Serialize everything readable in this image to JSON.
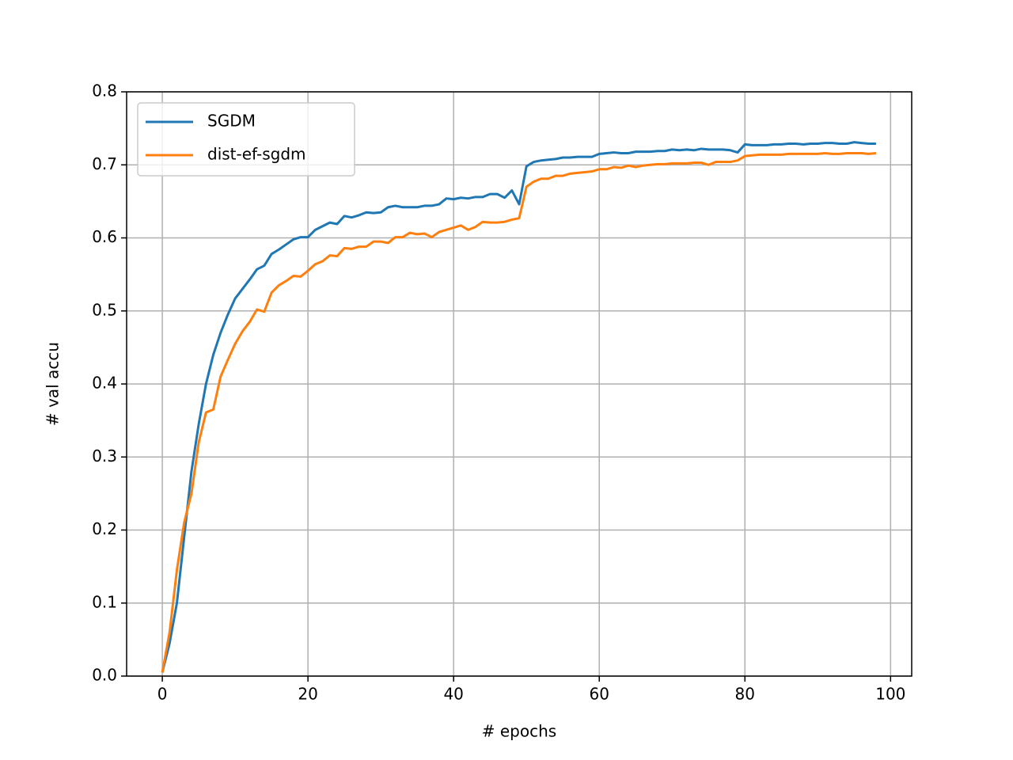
{
  "chart_data": {
    "type": "line",
    "xlabel": "# epochs",
    "ylabel": "# val accu",
    "x": [
      0,
      1,
      2,
      3,
      4,
      5,
      6,
      7,
      8,
      9,
      10,
      11,
      12,
      13,
      14,
      15,
      16,
      17,
      18,
      19,
      20,
      21,
      22,
      23,
      24,
      25,
      26,
      27,
      28,
      29,
      30,
      31,
      32,
      33,
      34,
      35,
      36,
      37,
      38,
      39,
      40,
      41,
      42,
      43,
      44,
      45,
      46,
      47,
      48,
      49,
      50,
      51,
      52,
      53,
      54,
      55,
      56,
      57,
      58,
      59,
      60,
      61,
      62,
      63,
      64,
      65,
      66,
      67,
      68,
      69,
      70,
      71,
      72,
      73,
      74,
      75,
      76,
      77,
      78,
      79,
      80,
      81,
      82,
      83,
      84,
      85,
      86,
      87,
      88,
      89,
      90,
      91,
      92,
      93,
      94,
      95,
      96,
      97,
      98
    ],
    "series": [
      {
        "name": "SGDM",
        "color": "#1f77b4",
        "values": [
          0.005,
          0.045,
          0.1,
          0.19,
          0.28,
          0.345,
          0.4,
          0.44,
          0.47,
          0.495,
          0.517,
          0.53,
          0.543,
          0.557,
          0.562,
          0.578,
          0.584,
          0.591,
          0.598,
          0.601,
          0.601,
          0.611,
          0.616,
          0.621,
          0.619,
          0.63,
          0.628,
          0.631,
          0.635,
          0.634,
          0.635,
          0.642,
          0.644,
          0.642,
          0.642,
          0.642,
          0.644,
          0.644,
          0.646,
          0.654,
          0.653,
          0.655,
          0.654,
          0.656,
          0.656,
          0.66,
          0.66,
          0.655,
          0.665,
          0.646,
          0.698,
          0.704,
          0.706,
          0.707,
          0.708,
          0.71,
          0.71,
          0.711,
          0.711,
          0.711,
          0.715,
          0.716,
          0.717,
          0.716,
          0.716,
          0.718,
          0.718,
          0.718,
          0.719,
          0.719,
          0.721,
          0.72,
          0.721,
          0.72,
          0.722,
          0.721,
          0.721,
          0.721,
          0.72,
          0.717,
          0.728,
          0.727,
          0.727,
          0.727,
          0.728,
          0.728,
          0.729,
          0.729,
          0.728,
          0.729,
          0.729,
          0.73,
          0.73,
          0.729,
          0.729,
          0.731,
          0.73,
          0.729,
          0.729
        ]
      },
      {
        "name": "dist-ef-sgdm",
        "color": "#ff7f0e",
        "values": [
          0.005,
          0.06,
          0.145,
          0.21,
          0.25,
          0.32,
          0.361,
          0.365,
          0.41,
          0.433,
          0.455,
          0.472,
          0.485,
          0.502,
          0.499,
          0.525,
          0.535,
          0.541,
          0.548,
          0.547,
          0.555,
          0.564,
          0.568,
          0.576,
          0.575,
          0.586,
          0.585,
          0.588,
          0.588,
          0.595,
          0.595,
          0.593,
          0.601,
          0.601,
          0.607,
          0.605,
          0.606,
          0.601,
          0.608,
          0.611,
          0.614,
          0.617,
          0.611,
          0.615,
          0.622,
          0.621,
          0.621,
          0.622,
          0.625,
          0.627,
          0.67,
          0.677,
          0.681,
          0.681,
          0.685,
          0.685,
          0.688,
          0.689,
          0.69,
          0.691,
          0.694,
          0.694,
          0.697,
          0.696,
          0.699,
          0.697,
          0.699,
          0.7,
          0.701,
          0.701,
          0.702,
          0.702,
          0.702,
          0.703,
          0.703,
          0.7,
          0.704,
          0.704,
          0.704,
          0.706,
          0.712,
          0.713,
          0.714,
          0.714,
          0.714,
          0.714,
          0.715,
          0.715,
          0.715,
          0.715,
          0.715,
          0.716,
          0.715,
          0.715,
          0.716,
          0.716,
          0.716,
          0.715,
          0.716
        ]
      }
    ],
    "xlim": [
      -4.9,
      102.9
    ],
    "ylim": [
      0,
      0.8
    ],
    "xticks": [
      0,
      20,
      40,
      60,
      80,
      100
    ],
    "yticks": [
      {
        "value": 0,
        "label": "0.0"
      },
      0.1,
      0.2,
      0.3,
      0.4,
      0.5,
      0.6,
      0.7,
      0.8
    ],
    "grid": true,
    "legend": "upper left"
  }
}
